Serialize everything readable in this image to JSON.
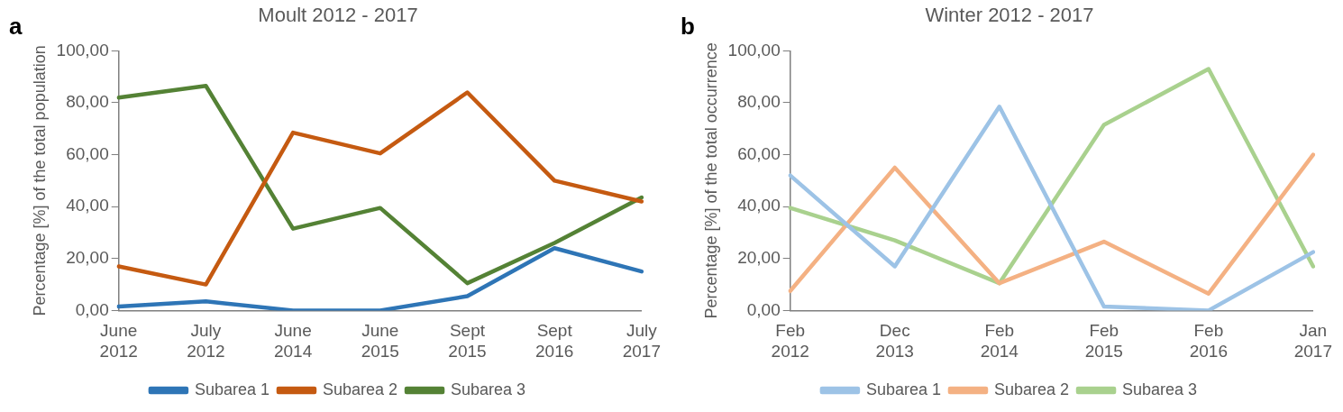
{
  "chart_data": [
    {
      "type": "line",
      "title": "Moult 2012 - 2017",
      "ylabel": "Percentage [%] of the total population",
      "annotations": [
        "a"
      ],
      "categories": [
        "June 2012",
        "July 2012",
        "June 2014",
        "June 2015",
        "Sept 2015",
        "Sept 2016",
        "July 2017"
      ],
      "series": [
        {
          "name": "Subarea 1",
          "color": "#2e75b6",
          "values": [
            1.5,
            3.5,
            0,
            0,
            5.5,
            24,
            15
          ]
        },
        {
          "name": "Subarea 2",
          "color": "#c55a11",
          "values": [
            17,
            10,
            68.5,
            60.5,
            84,
            50,
            42
          ]
        },
        {
          "name": "Subarea 3",
          "color": "#548235",
          "values": [
            82,
            86.5,
            31.5,
            39.5,
            10.5,
            26,
            43.5
          ]
        }
      ],
      "ylim": [
        0,
        100
      ],
      "yticks": [
        {
          "value": 0,
          "label": "0,00"
        },
        {
          "value": 20,
          "label": "20,00"
        },
        {
          "value": 40,
          "label": "40,00"
        },
        {
          "value": 60,
          "label": "60,00"
        },
        {
          "value": 80,
          "label": "80,00"
        },
        {
          "value": 100,
          "label": "100,00"
        }
      ],
      "grid": false,
      "legend": "bottom",
      "marker": "none",
      "line_style": "solid"
    },
    {
      "type": "line",
      "title": "Winter 2012 - 2017",
      "ylabel": "Percentage [%] of the total occurrence",
      "annotations": [
        "b"
      ],
      "categories": [
        "Feb 2012",
        "Dec 2013",
        "Feb 2014",
        "Feb 2015",
        "Feb 2016",
        "Jan 2017"
      ],
      "series": [
        {
          "name": "Subarea 1",
          "color": "#9dc3e6",
          "values": [
            52,
            17,
            78.5,
            1.5,
            0,
            22.5
          ]
        },
        {
          "name": "Subarea 2",
          "color": "#f4b183",
          "values": [
            7.5,
            55,
            10.5,
            26.5,
            6.5,
            60
          ]
        },
        {
          "name": "Subarea 3",
          "color": "#a9d18e",
          "values": [
            39.5,
            27,
            10.5,
            71.5,
            93,
            17
          ]
        }
      ],
      "ylim": [
        0,
        100
      ],
      "yticks": [
        {
          "value": 0,
          "label": "0,00"
        },
        {
          "value": 20,
          "label": "20,00"
        },
        {
          "value": 40,
          "label": "40,00"
        },
        {
          "value": 60,
          "label": "60,00"
        },
        {
          "value": 80,
          "label": "80,00"
        },
        {
          "value": 100,
          "label": "100,00"
        }
      ],
      "grid": false,
      "legend": "bottom",
      "marker": "none",
      "line_style": "solid"
    }
  ]
}
